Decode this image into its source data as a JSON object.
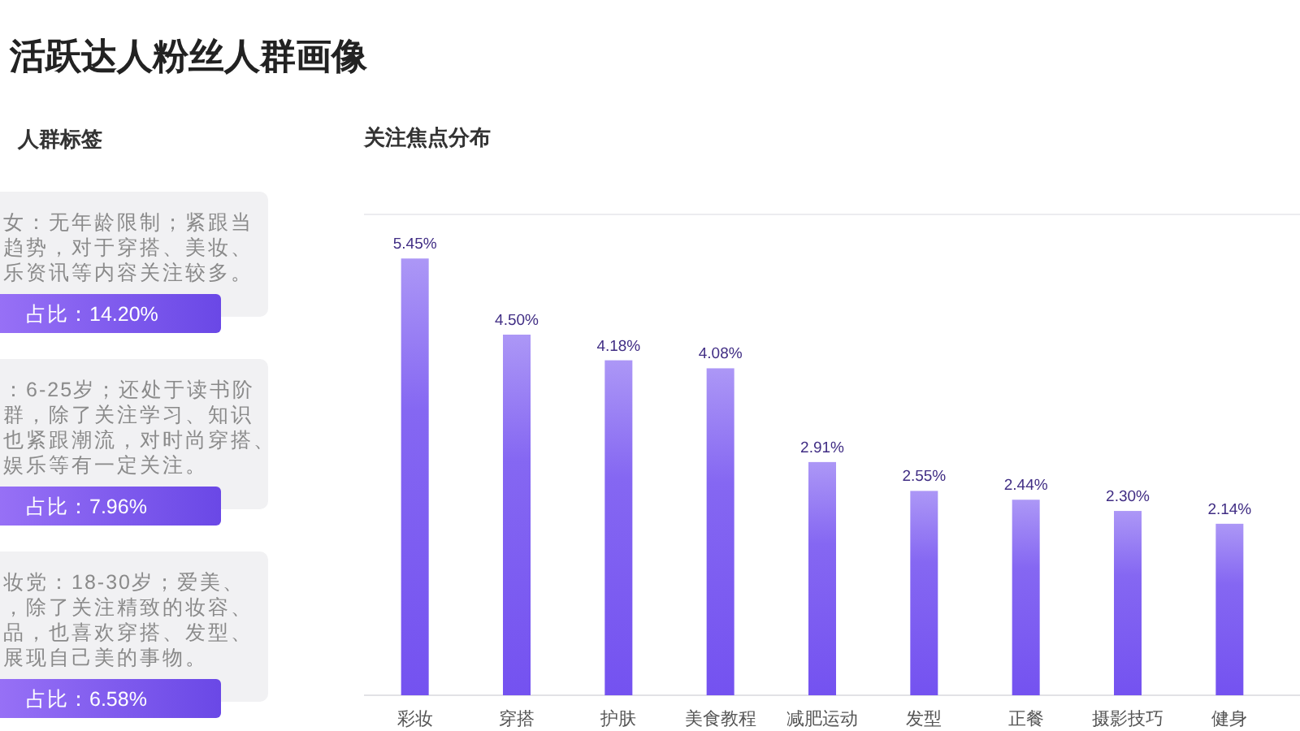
{
  "chart_data": [
    {
      "type": "other",
      "title": "活跃达人粉丝人群画像",
      "subtitle": "人群标签"
    },
    {
      "type": "other",
      "annotations": [
        "女：无年龄限制；紧跟当",
        "趋势，对于穿搭、美妆、",
        "乐资讯等内容关注较多。",
        "占比：14.20%"
      ]
    },
    {
      "type": "other",
      "annotations": [
        "：6-25岁；还处于读书阶",
        "群，除了关注学习、知识",
        "也紧跟潮流，对时尚穿搭、",
        "娱乐等有一定关注。",
        "占比：7.96%"
      ]
    },
    {
      "type": "other",
      "annotations": [
        "妆党：18-30岁；爱美、",
        "，除了关注精致的妆容、",
        "品，也喜欢穿搭、发型、",
        "展现自己美的事物。",
        "占比：6.58%"
      ]
    },
    {
      "type": "bar",
      "title": "关注焦点分布",
      "categories": [
        "彩妆",
        "穿搭",
        "护肤",
        "美食教程",
        "减肥运动",
        "发型",
        "正餐",
        "摄影技巧",
        "健身"
      ],
      "values": [
        5.45,
        4.5,
        4.18,
        4.08,
        2.91,
        2.55,
        2.44,
        2.3,
        2.14
      ],
      "value_labels": [
        "5.45%",
        "4.50%",
        "4.18%",
        "4.08%",
        "2.91%",
        "2.55%",
        "2.44%",
        "2.30%",
        "2.14%"
      ],
      "color": "#7452f0",
      "ylim": [
        0,
        6
      ]
    }
  ]
}
